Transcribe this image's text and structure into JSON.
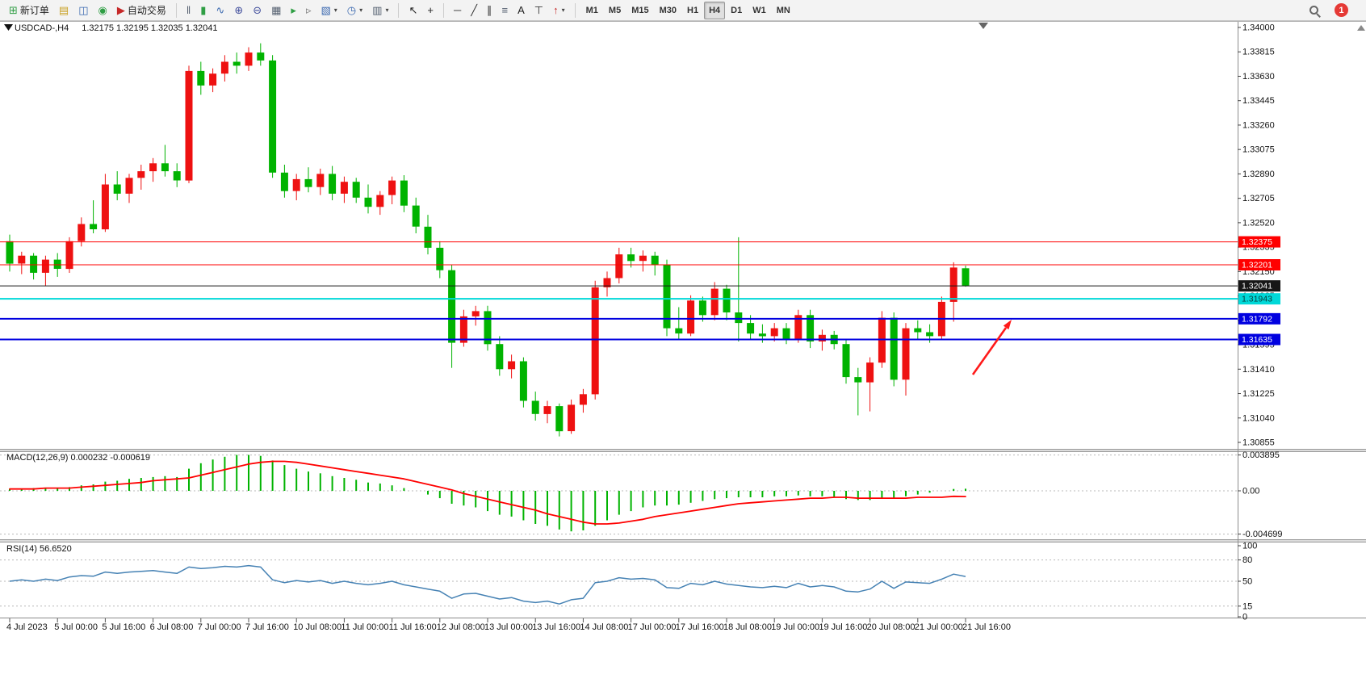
{
  "toolbar": {
    "items": [
      {
        "name": "new-order-button",
        "icon": "new-order-icon",
        "glyph": "⊞",
        "color": "#2f9e44",
        "label": "新订单"
      },
      {
        "name": "market-watch-button",
        "icon": "market-watch-icon",
        "glyph": "▤",
        "color": "#c9a023"
      },
      {
        "name": "navigator-button",
        "icon": "navigator-icon",
        "glyph": "◫",
        "color": "#3b69b0"
      },
      {
        "name": "terminal-button",
        "icon": "terminal-icon",
        "glyph": "◉",
        "color": "#2f9e44"
      },
      {
        "name": "autotrading-button",
        "icon": "autotrading-icon",
        "glyph": "▶",
        "color": "#c62828",
        "label": "自动交易"
      },
      {
        "sep": true
      },
      {
        "name": "bar-chart-button",
        "icon": "bar-chart-icon",
        "glyph": "‖",
        "color": "#556070"
      },
      {
        "name": "candlestick-chart-button",
        "icon": "candlestick-chart-icon",
        "glyph": "▮",
        "color": "#2f9e44"
      },
      {
        "name": "line-chart-button",
        "icon": "line-chart-icon",
        "glyph": "∿",
        "color": "#3b69b0"
      },
      {
        "name": "zoom-in-button",
        "icon": "zoom-in-icon",
        "glyph": "⊕",
        "color": "#44519e"
      },
      {
        "name": "zoom-out-button",
        "icon": "zoom-out-icon",
        "glyph": "⊖",
        "color": "#44519e"
      },
      {
        "name": "tile-windows-button",
        "icon": "tile-windows-icon",
        "glyph": "▦",
        "color": "#556070"
      },
      {
        "name": "auto-scroll-button",
        "icon": "auto-scroll-icon",
        "glyph": "▸",
        "color": "#2f9e44"
      },
      {
        "name": "chart-shift-button",
        "icon": "chart-shift-icon",
        "glyph": "▹",
        "color": "#777777"
      },
      {
        "name": "new-chart-button",
        "icon": "new-chart-icon",
        "glyph": "▧",
        "color": "#3b69b0",
        "caret": true
      },
      {
        "name": "period-button",
        "icon": "clock-icon",
        "glyph": "◷",
        "color": "#3b69b0",
        "caret": true
      },
      {
        "name": "templates-button",
        "icon": "template-icon",
        "glyph": "▥",
        "color": "#556070",
        "caret": true
      },
      {
        "sep": true
      },
      {
        "name": "cursor-button",
        "icon": "cursor-icon",
        "glyph": "↖",
        "color": "#222222"
      },
      {
        "name": "crosshair-button",
        "icon": "crosshair-icon",
        "glyph": "+",
        "color": "#222222"
      },
      {
        "sep": true
      },
      {
        "name": "horizontal-line-button",
        "icon": "horizontal-line-icon",
        "glyph": "─",
        "color": "#333333"
      },
      {
        "name": "trendline-button",
        "icon": "trendline-icon",
        "glyph": "╱",
        "color": "#333333"
      },
      {
        "name": "channel-button",
        "icon": "channel-icon",
        "glyph": "∥",
        "color": "#333333"
      },
      {
        "name": "fibonacci-button",
        "icon": "fibonacci-icon",
        "glyph": "≡",
        "color": "#556070"
      },
      {
        "name": "text-button",
        "icon": "text-icon",
        "glyph": "A",
        "color": "#222222"
      },
      {
        "name": "text-label-button",
        "icon": "text-label-icon",
        "glyph": "⊤",
        "color": "#222222"
      },
      {
        "name": "arrows-button",
        "icon": "arrow-up-icon",
        "glyph": "↑",
        "color": "#c62828",
        "caret": true
      },
      {
        "sep": true
      }
    ],
    "timeframes": [
      "M1",
      "M5",
      "M15",
      "M30",
      "H1",
      "H4",
      "D1",
      "W1",
      "MN"
    ],
    "active_timeframe": "H4",
    "notification_badge": "1"
  },
  "chart": {
    "title": "USDCAD-,H4",
    "ohlc_line": "1.32175 1.32195 1.32035 1.32041",
    "price_axis_labels": [
      "1.34000",
      "1.33815",
      "1.33630",
      "1.33445",
      "1.33260",
      "1.33075",
      "1.32890",
      "1.32705",
      "1.32520",
      "1.32335",
      "1.32150",
      "1.31965",
      "1.31780",
      "1.31595",
      "1.31410",
      "1.31225",
      "1.31040",
      "1.30855"
    ],
    "levels": [
      {
        "label": "1.32375",
        "price": 1.32375,
        "color": "#ff0000",
        "text_color": "#ffffff",
        "width": 1
      },
      {
        "label": "1.32201",
        "price": 1.32201,
        "color": "#ff0000",
        "text_color": "#ffffff",
        "width": 1
      },
      {
        "label": "1.32041",
        "price": 1.32041,
        "color": "#161616",
        "text_color": "#ffffff",
        "width": 1
      },
      {
        "label": "1.31943",
        "price": 1.31943,
        "color": "#00d8d8",
        "text_color": "#073b3b",
        "width": 2
      },
      {
        "label": "1.31792",
        "price": 1.31792,
        "color": "#0000e0",
        "text_color": "#ffffff",
        "width": 2
      },
      {
        "label": "1.31635",
        "price": 1.31635,
        "color": "#0000e0",
        "text_color": "#ffffff",
        "width": 2
      }
    ],
    "colors": {
      "up": "#ee1111",
      "down": "#00b300",
      "macd_histogram": "#00b300",
      "macd_signal": "#ff0000",
      "rsi_line": "#4682b4"
    }
  },
  "macd_panel": {
    "label": "MACD(12,26,9) 0.000232 -0.000619",
    "axis_labels": [
      "0.003895",
      "0.00",
      "-0.004699"
    ],
    "axis_values": [
      0.003895,
      0,
      -0.004699
    ]
  },
  "rsi_panel": {
    "label": "RSI(14) 56.6520",
    "axis_labels": [
      "100",
      "80",
      "50",
      "15",
      "0"
    ],
    "axis_values": [
      100,
      80,
      50,
      15,
      0
    ],
    "dashed_levels": [
      80,
      50,
      15
    ]
  },
  "annotation_arrow": {
    "color": "#ff1a1a",
    "from": [
      1205,
      464
    ],
    "to": [
      1253,
      396
    ]
  },
  "chart_data": {
    "type": "candlestick",
    "symbol": "USDCAD",
    "timeframe": "H4",
    "current_ohlc": {
      "open": 1.32175,
      "high": 1.32195,
      "low": 1.32035,
      "close": 1.32041
    },
    "price_range": [
      1.30855,
      1.34
    ],
    "candles": [
      [
        1.3238,
        1.3243,
        1.3215,
        1.3221
      ],
      [
        1.3221,
        1.323,
        1.3213,
        1.3227
      ],
      [
        1.3227,
        1.3229,
        1.3209,
        1.3214
      ],
      [
        1.3214,
        1.3227,
        1.3204,
        1.3224
      ],
      [
        1.3224,
        1.3229,
        1.3211,
        1.3217
      ],
      [
        1.3217,
        1.3241,
        1.3214,
        1.3238
      ],
      [
        1.3238,
        1.3256,
        1.3234,
        1.3251
      ],
      [
        1.3251,
        1.3269,
        1.3244,
        1.3247
      ],
      [
        1.3247,
        1.3289,
        1.3245,
        1.3281
      ],
      [
        1.3281,
        1.3291,
        1.3269,
        1.3274
      ],
      [
        1.3274,
        1.3289,
        1.3267,
        1.3286
      ],
      [
        1.3286,
        1.3296,
        1.3277,
        1.3291
      ],
      [
        1.3291,
        1.3301,
        1.3283,
        1.3297
      ],
      [
        1.3297,
        1.3311,
        1.3287,
        1.3291
      ],
      [
        1.3291,
        1.3297,
        1.3279,
        1.3284
      ],
      [
        1.3284,
        1.3371,
        1.3282,
        1.3367
      ],
      [
        1.3367,
        1.3374,
        1.3349,
        1.3356
      ],
      [
        1.3356,
        1.3369,
        1.3351,
        1.3365
      ],
      [
        1.3365,
        1.3379,
        1.3359,
        1.3374
      ],
      [
        1.3374,
        1.3381,
        1.3365,
        1.3371
      ],
      [
        1.3371,
        1.3385,
        1.3367,
        1.3381
      ],
      [
        1.3381,
        1.3388,
        1.3371,
        1.3375
      ],
      [
        1.3375,
        1.3379,
        1.3286,
        1.329
      ],
      [
        1.329,
        1.3296,
        1.3271,
        1.3276
      ],
      [
        1.3276,
        1.3289,
        1.3269,
        1.3285
      ],
      [
        1.3285,
        1.3294,
        1.3275,
        1.3279
      ],
      [
        1.3279,
        1.3293,
        1.3273,
        1.3289
      ],
      [
        1.3289,
        1.3295,
        1.3269,
        1.3274
      ],
      [
        1.3274,
        1.3287,
        1.3267,
        1.3283
      ],
      [
        1.3283,
        1.3286,
        1.3267,
        1.3271
      ],
      [
        1.3271,
        1.3281,
        1.3259,
        1.3264
      ],
      [
        1.3264,
        1.3276,
        1.3258,
        1.3273
      ],
      [
        1.3273,
        1.3287,
        1.3266,
        1.3284
      ],
      [
        1.3284,
        1.3288,
        1.326,
        1.3265
      ],
      [
        1.3265,
        1.3271,
        1.3244,
        1.3249
      ],
      [
        1.3249,
        1.3258,
        1.3228,
        1.3233
      ],
      [
        1.3233,
        1.3238,
        1.321,
        1.3216
      ],
      [
        1.3216,
        1.322,
        1.3142,
        1.3161
      ],
      [
        1.3161,
        1.3186,
        1.3158,
        1.3181
      ],
      [
        1.3181,
        1.3189,
        1.3174,
        1.3185
      ],
      [
        1.3185,
        1.3189,
        1.3155,
        1.316
      ],
      [
        1.316,
        1.3166,
        1.3136,
        1.3141
      ],
      [
        1.3141,
        1.3152,
        1.3134,
        1.3147
      ],
      [
        1.3147,
        1.315,
        1.3112,
        1.3117
      ],
      [
        1.3117,
        1.3124,
        1.3102,
        1.3107
      ],
      [
        1.3107,
        1.3117,
        1.31,
        1.3113
      ],
      [
        1.3113,
        1.3115,
        1.309,
        1.3094
      ],
      [
        1.3094,
        1.3118,
        1.3092,
        1.3114
      ],
      [
        1.3114,
        1.3126,
        1.3108,
        1.3122
      ],
      [
        1.3122,
        1.3208,
        1.3118,
        1.3203
      ],
      [
        1.3203,
        1.3215,
        1.3196,
        1.321
      ],
      [
        1.321,
        1.3233,
        1.3206,
        1.3228
      ],
      [
        1.3228,
        1.3233,
        1.3218,
        1.3223
      ],
      [
        1.3223,
        1.3231,
        1.3215,
        1.3227
      ],
      [
        1.3227,
        1.323,
        1.3212,
        1.322
      ],
      [
        1.322,
        1.3224,
        1.3166,
        1.3172
      ],
      [
        1.3172,
        1.3188,
        1.3163,
        1.3168
      ],
      [
        1.3168,
        1.3197,
        1.3166,
        1.3193
      ],
      [
        1.3193,
        1.3196,
        1.3177,
        1.3182
      ],
      [
        1.3182,
        1.3207,
        1.3178,
        1.3202
      ],
      [
        1.3202,
        1.3205,
        1.3178,
        1.3184
      ],
      [
        1.3184,
        1.3241,
        1.3162,
        1.3176
      ],
      [
        1.3176,
        1.3182,
        1.3163,
        1.3168
      ],
      [
        1.3168,
        1.3175,
        1.3161,
        1.3166
      ],
      [
        1.3166,
        1.3176,
        1.3162,
        1.3172
      ],
      [
        1.3172,
        1.3176,
        1.316,
        1.3164
      ],
      [
        1.3164,
        1.3186,
        1.3161,
        1.3182
      ],
      [
        1.3182,
        1.3186,
        1.3157,
        1.3162
      ],
      [
        1.3162,
        1.3171,
        1.3155,
        1.3167
      ],
      [
        1.3167,
        1.317,
        1.3156,
        1.316
      ],
      [
        1.316,
        1.3163,
        1.313,
        1.3135
      ],
      [
        1.3135,
        1.3142,
        1.3106,
        1.3131
      ],
      [
        1.3131,
        1.315,
        1.3109,
        1.3146
      ],
      [
        1.3146,
        1.3185,
        1.3142,
        1.318
      ],
      [
        1.318,
        1.3184,
        1.3128,
        1.3133
      ],
      [
        1.3133,
        1.3176,
        1.3121,
        1.3172
      ],
      [
        1.3172,
        1.3178,
        1.3164,
        1.3169
      ],
      [
        1.3169,
        1.3175,
        1.3161,
        1.3166
      ],
      [
        1.3166,
        1.3196,
        1.3163,
        1.3192
      ],
      [
        1.3192,
        1.3222,
        1.3177,
        1.3218
      ],
      [
        1.32175,
        1.32195,
        1.32035,
        1.32041
      ]
    ],
    "time_labels": [
      [
        0,
        "4 Jul 2023"
      ],
      [
        4,
        "5 Jul 00:00"
      ],
      [
        8,
        "5 Jul 16:00"
      ],
      [
        12,
        "6 Jul 08:00"
      ],
      [
        16,
        "7 Jul 00:00"
      ],
      [
        20,
        "7 Jul 16:00"
      ],
      [
        24,
        "10 Jul 08:00"
      ],
      [
        28,
        "11 Jul 00:00"
      ],
      [
        32,
        "11 Jul 16:00"
      ],
      [
        36,
        "12 Jul 08:00"
      ],
      [
        40,
        "13 Jul 00:00"
      ],
      [
        44,
        "13 Jul 16:00"
      ],
      [
        48,
        "14 Jul 08:00"
      ],
      [
        52,
        "17 Jul 00:00"
      ],
      [
        56,
        "17 Jul 16:00"
      ],
      [
        60,
        "18 Jul 08:00"
      ],
      [
        64,
        "19 Jul 00:00"
      ],
      [
        68,
        "19 Jul 16:00"
      ],
      [
        72,
        "20 Jul 08:00"
      ],
      [
        76,
        "21 Jul 00:00"
      ],
      [
        80,
        "21 Jul 16:00"
      ]
    ],
    "macd": {
      "params": "12,26,9",
      "value": 0.000232,
      "signal_value": -0.000619,
      "range": [
        -0.004699,
        0.003895
      ],
      "histogram": [
        0.0002,
        0.0002,
        0.0003,
        0.0003,
        0.0003,
        0.0004,
        0.0006,
        0.0007,
        0.001,
        0.0011,
        0.0013,
        0.0014,
        0.0015,
        0.0016,
        0.0015,
        0.0024,
        0.003,
        0.0034,
        0.0037,
        0.0039,
        0.0039,
        0.0038,
        0.0033,
        0.0028,
        0.0024,
        0.0021,
        0.0019,
        0.0016,
        0.0014,
        0.0012,
        0.0009,
        0.0008,
        0.0006,
        0.0003,
        0.0,
        -0.0004,
        -0.0008,
        -0.0014,
        -0.0016,
        -0.0018,
        -0.0022,
        -0.0026,
        -0.0028,
        -0.0032,
        -0.0036,
        -0.0038,
        -0.0042,
        -0.0044,
        -0.0043,
        -0.0038,
        -0.0032,
        -0.0026,
        -0.0022,
        -0.0018,
        -0.0016,
        -0.0016,
        -0.0015,
        -0.0013,
        -0.0011,
        -0.0009,
        -0.0008,
        -0.0007,
        -0.0007,
        -0.0007,
        -0.0006,
        -0.0006,
        -0.0005,
        -0.0006,
        -0.0006,
        -0.0007,
        -0.0009,
        -0.001,
        -0.001,
        -0.0008,
        -0.0008,
        -0.0006,
        -0.0004,
        -0.0002,
        0.0,
        0.0002,
        0.000232
      ],
      "signal": [
        0.0002,
        0.0002,
        0.0002,
        0.0003,
        0.0003,
        0.0003,
        0.0004,
        0.0005,
        0.0006,
        0.0007,
        0.0008,
        0.0009,
        0.0011,
        0.0012,
        0.0013,
        0.0014,
        0.0017,
        0.002,
        0.0023,
        0.0026,
        0.0029,
        0.0031,
        0.0032,
        0.0032,
        0.0031,
        0.0029,
        0.0027,
        0.0025,
        0.0023,
        0.0021,
        0.0019,
        0.0017,
        0.0015,
        0.0013,
        0.001,
        0.0007,
        0.0004,
        0.0001,
        -0.0003,
        -0.0006,
        -0.0009,
        -0.0012,
        -0.0015,
        -0.0018,
        -0.0021,
        -0.0025,
        -0.0028,
        -0.0031,
        -0.0034,
        -0.0036,
        -0.0036,
        -0.0035,
        -0.0033,
        -0.0031,
        -0.0028,
        -0.0026,
        -0.0024,
        -0.0022,
        -0.002,
        -0.0018,
        -0.0016,
        -0.0014,
        -0.0013,
        -0.0012,
        -0.0011,
        -0.001,
        -0.0009,
        -0.0008,
        -0.0008,
        -0.0007,
        -0.0007,
        -0.0008,
        -0.0008,
        -0.0008,
        -0.0008,
        -0.0008,
        -0.0007,
        -0.0007,
        -0.0007,
        -0.0006,
        -0.000619
      ]
    },
    "rsi": {
      "period": 14,
      "value": 56.652,
      "range": [
        0,
        100
      ],
      "levels": [
        80,
        50,
        15
      ],
      "values": [
        50,
        52,
        50,
        53,
        51,
        56,
        58,
        57,
        63,
        61,
        63,
        64,
        65,
        63,
        61,
        70,
        68,
        69,
        71,
        70,
        72,
        70,
        52,
        48,
        51,
        49,
        51,
        47,
        50,
        47,
        45,
        47,
        50,
        45,
        42,
        39,
        36,
        26,
        32,
        33,
        29,
        25,
        27,
        22,
        20,
        22,
        18,
        24,
        26,
        48,
        50,
        55,
        53,
        54,
        52,
        41,
        40,
        47,
        45,
        50,
        46,
        44,
        42,
        41,
        43,
        41,
        47,
        42,
        44,
        42,
        36,
        35,
        39,
        50,
        40,
        49,
        48,
        47,
        53,
        60,
        56.652
      ]
    }
  }
}
